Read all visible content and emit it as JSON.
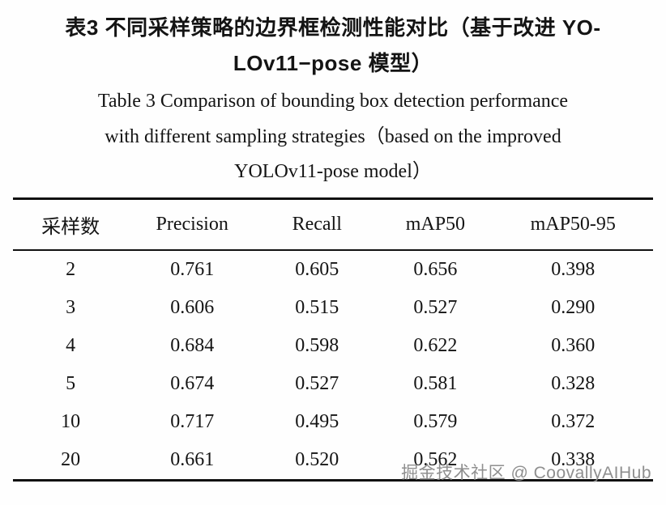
{
  "caption": {
    "zh_lines": [
      "表3  不同采样策略的边界框检测性能对比（基于改进 YO-",
      "LOv11−pose 模型）"
    ],
    "en_lines": [
      "Table 3  Comparison of bounding box detection performance",
      "with different sampling strategies（based on the improved",
      "YOLOv11-pose model）"
    ]
  },
  "table": {
    "headers": [
      "采样数",
      "Precision",
      "Recall",
      "mAP50",
      "mAP50-95"
    ],
    "rows": [
      [
        "2",
        "0.761",
        "0.605",
        "0.656",
        "0.398"
      ],
      [
        "3",
        "0.606",
        "0.515",
        "0.527",
        "0.290"
      ],
      [
        "4",
        "0.684",
        "0.598",
        "0.622",
        "0.360"
      ],
      [
        "5",
        "0.674",
        "0.527",
        "0.581",
        "0.328"
      ],
      [
        "10",
        "0.717",
        "0.495",
        "0.579",
        "0.372"
      ],
      [
        "20",
        "0.661",
        "0.520",
        "0.562",
        "0.338"
      ]
    ]
  },
  "watermark": "掘金技术社区 @ CoovallyAIHub",
  "chart_data": {
    "type": "table",
    "title_zh": "表3 不同采样策略的边界框检测性能对比（基于改进YOLOv11−pose模型）",
    "title_en": "Table 3 Comparison of bounding box detection performance with different sampling strategies (based on the improved YOLOv11-pose model)",
    "columns": [
      "采样数",
      "Precision",
      "Recall",
      "mAP50",
      "mAP50-95"
    ],
    "rows": [
      [
        2,
        0.761,
        0.605,
        0.656,
        0.398
      ],
      [
        3,
        0.606,
        0.515,
        0.527,
        0.29
      ],
      [
        4,
        0.684,
        0.598,
        0.622,
        0.36
      ],
      [
        5,
        0.674,
        0.527,
        0.581,
        0.328
      ],
      [
        10,
        0.717,
        0.495,
        0.579,
        0.372
      ],
      [
        20,
        0.661,
        0.52,
        0.562,
        0.338
      ]
    ]
  }
}
